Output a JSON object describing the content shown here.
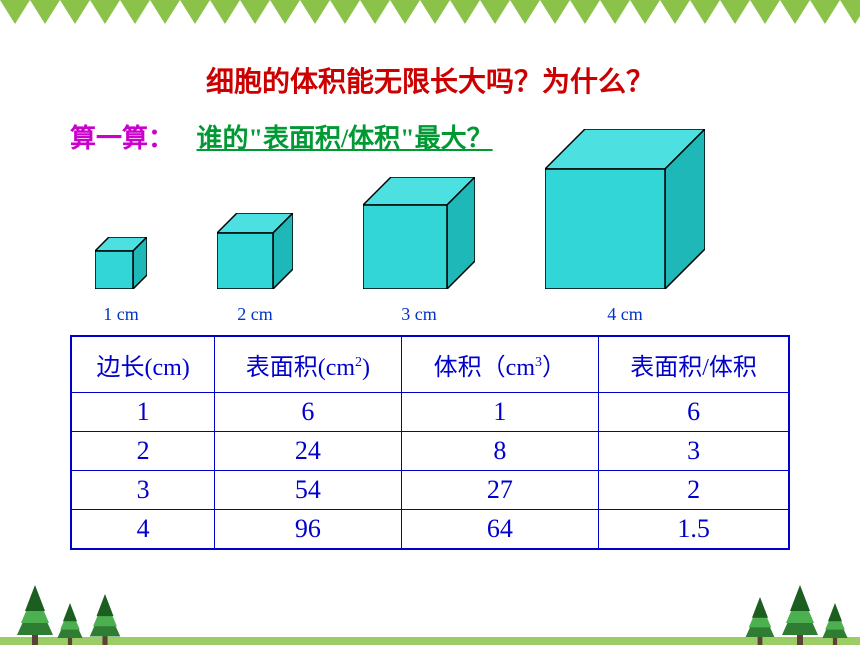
{
  "title": {
    "text": "细胞的体积能无限长大吗？为什么？",
    "color": "#cc0000"
  },
  "subtitle": {
    "label": "算一算：",
    "label_color": "#cc00cc",
    "question": "谁的\"表面积/体积\"最大？",
    "question_color": "#009933"
  },
  "cubes": [
    {
      "label": "1 cm",
      "size": 38,
      "depth": 14
    },
    {
      "label": "2 cm",
      "size": 56,
      "depth": 20
    },
    {
      "label": "3 cm",
      "size": 84,
      "depth": 28
    },
    {
      "label": "4 cm",
      "size": 120,
      "depth": 40
    }
  ],
  "cube_style": {
    "front_fill": "#33d6d6",
    "top_fill": "#4de0e0",
    "side_fill": "#1fb8b8",
    "stroke": "#000000",
    "stroke_width": 1.5
  },
  "table": {
    "border_color": "#0000cc",
    "text_color": "#0000cc",
    "columns": [
      {
        "label": "边长(cm)",
        "unit_sup": ""
      },
      {
        "label": "表面积(cm",
        "unit_sup": "2",
        "suffix": ")"
      },
      {
        "label": "体积（cm",
        "unit_sup": "3",
        "suffix": "）"
      },
      {
        "label": "表面积/体积",
        "unit_sup": ""
      }
    ],
    "rows": [
      [
        "1",
        "6",
        "1",
        "6"
      ],
      [
        "2",
        "24",
        "8",
        "3"
      ],
      [
        "3",
        "54",
        "27",
        "2"
      ],
      [
        "4",
        "96",
        "64",
        "1.5"
      ]
    ]
  },
  "decoration": {
    "triangle_color": "#8bc34a",
    "tree_green": "#2e7d32",
    "tree_green_light": "#4caf50",
    "tree_dark": "#1b5e20",
    "trunk": "#5d4037",
    "ground": "#9ccc65"
  }
}
